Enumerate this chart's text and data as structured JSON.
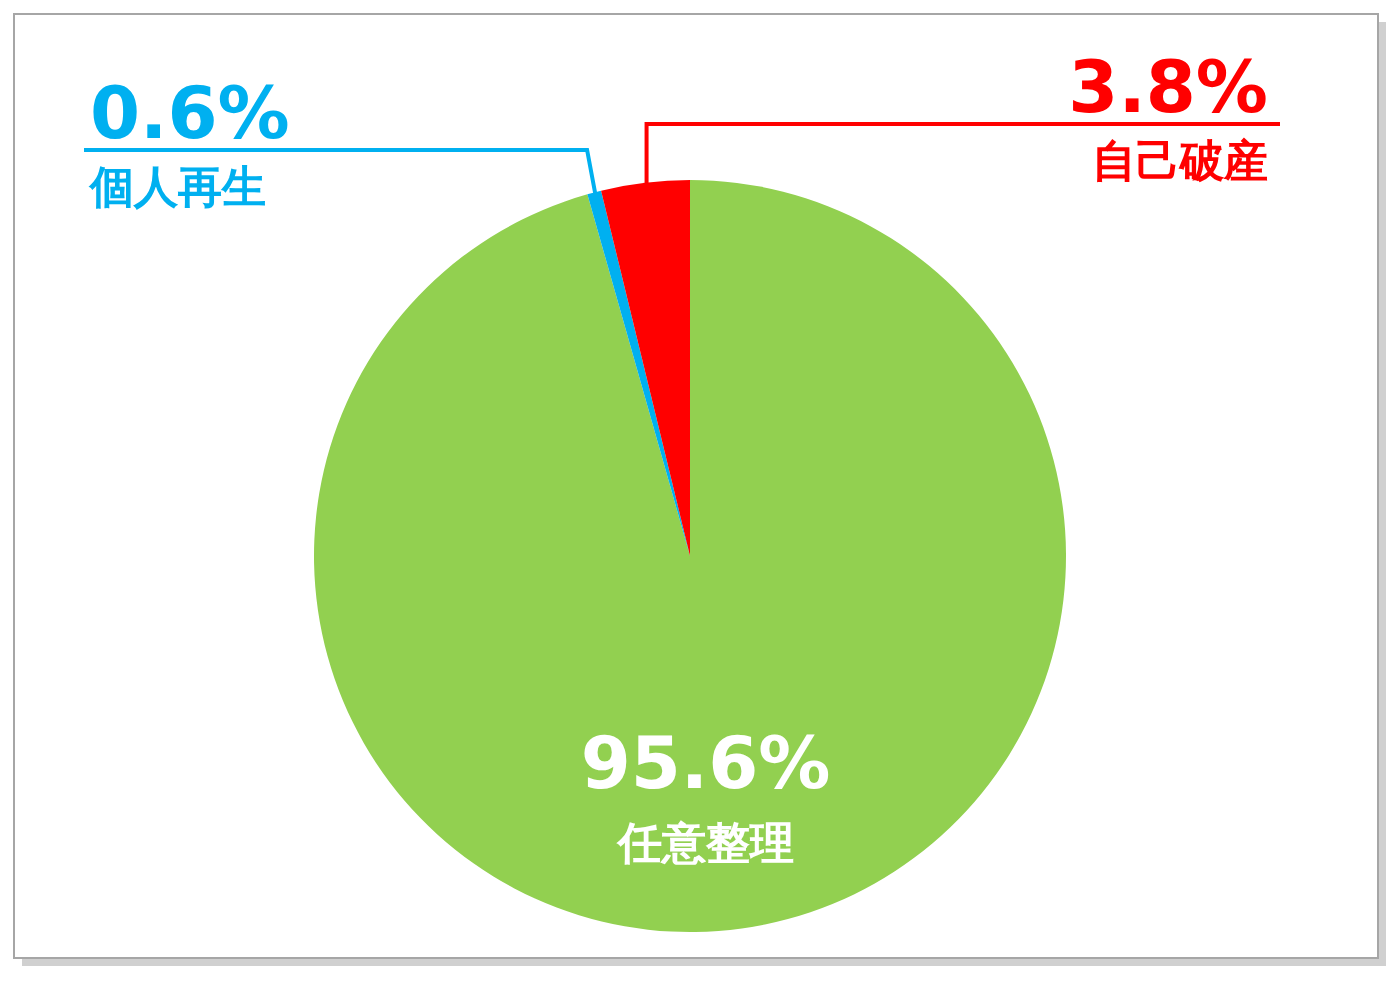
{
  "chart_data": {
    "type": "pie",
    "categories": [
      "任意整理",
      "個人再生",
      "自己破産"
    ],
    "values": [
      95.6,
      0.6,
      3.8
    ],
    "value_labels": [
      "95.6%",
      "0.6%",
      "3.8%"
    ],
    "colors": [
      "#92d050",
      "#00b0f0",
      "#ff0000"
    ]
  }
}
